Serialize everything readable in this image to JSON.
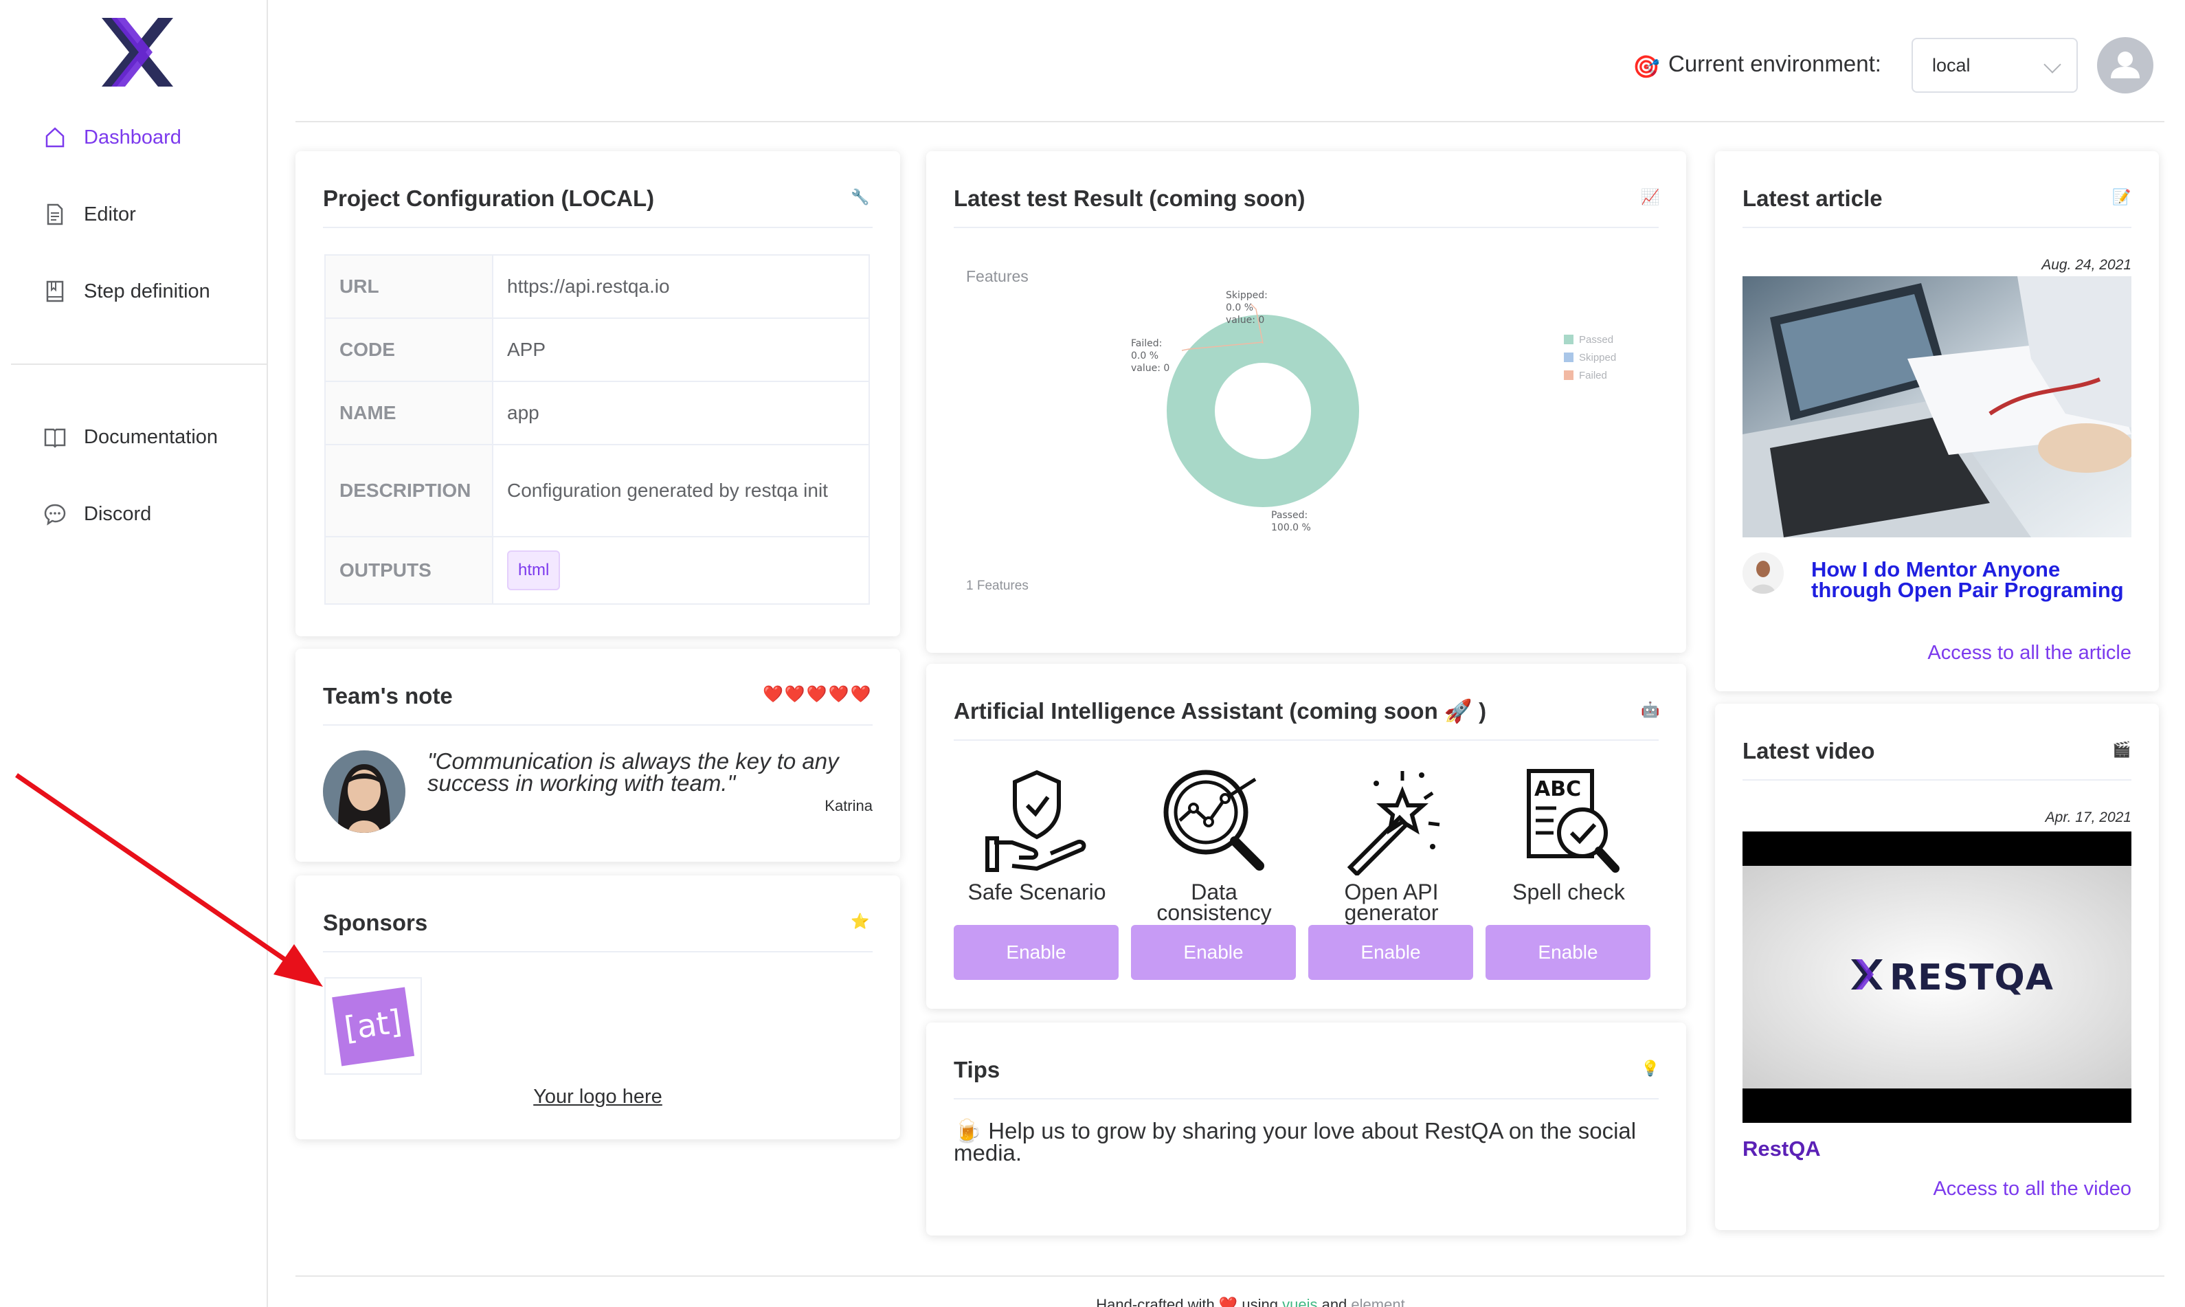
{
  "sidebar": {
    "items": [
      {
        "label": "Dashboard",
        "icon": "home-icon"
      },
      {
        "label": "Editor",
        "icon": "document-icon"
      },
      {
        "label": "Step definition",
        "icon": "notebook-icon"
      },
      {
        "label": "Documentation",
        "icon": "book-icon"
      },
      {
        "label": "Discord",
        "icon": "chat-icon"
      }
    ]
  },
  "header": {
    "env_icon": "🎯",
    "env_label": "Current environment:",
    "env_value": "local"
  },
  "project": {
    "title": "Project Configuration (LOCAL)",
    "icon": "🔧",
    "rows": [
      {
        "key": "URL",
        "value": "https://api.restqa.io"
      },
      {
        "key": "CODE",
        "value": "APP"
      },
      {
        "key": "NAME",
        "value": "app"
      },
      {
        "key": "DESCRIPTION",
        "value": "Configuration generated by restqa init"
      },
      {
        "key": "OUTPUTS",
        "value": "html"
      }
    ]
  },
  "team_note": {
    "title": "Team's note",
    "hearts": "❤️❤️❤️❤️❤️",
    "quote": "\"Communication is always the key to any success in working with team.\"",
    "author": "Katrina"
  },
  "sponsors": {
    "title": "Sponsors",
    "icon": "⭐",
    "logo_text": "[at]",
    "link": "Your logo here"
  },
  "test_result": {
    "title": "Latest test Result (coming soon)",
    "icon": "📈",
    "chart_label": "Features",
    "footer": "1 Features",
    "skipped_label": [
      "Skipped:",
      "0.0 %",
      "value: 0"
    ],
    "failed_label": [
      "Failed:",
      "0.0 %",
      "value: 0"
    ],
    "passed_label": [
      "Passed:",
      "100.0 %"
    ]
  },
  "chart_data": {
    "type": "pie",
    "title": "Features",
    "categories": [
      "Passed",
      "Skipped",
      "Failed"
    ],
    "values": [
      1,
      0,
      0
    ],
    "percent": [
      100.0,
      0.0,
      0.0
    ],
    "colors": [
      "#a8d8c8",
      "#a9c6e8",
      "#f2b9a3"
    ],
    "legend": "right"
  },
  "ai": {
    "title": "Artificial Intelligence Assistant (coming soon 🚀 )",
    "icon": "🤖",
    "items": [
      {
        "label": "Safe Scenario",
        "button": "Enable"
      },
      {
        "label": "Data consistency",
        "button": "Enable"
      },
      {
        "label": "Open API generator",
        "button": "Enable"
      },
      {
        "label": "Spell check",
        "button": "Enable"
      }
    ]
  },
  "tips": {
    "title": "Tips",
    "icon": "💡",
    "text_icon": "🍺",
    "text": "Help us to grow by sharing your love about RestQA on the social media."
  },
  "article": {
    "title": "Latest article",
    "icon": "📝",
    "date": "Aug. 24, 2021",
    "headline": "How I do Mentor Anyone through Open Pair Programing",
    "link": "Access to all the article"
  },
  "video": {
    "title": "Latest video",
    "icon": "🎬",
    "date": "Apr. 17, 2021",
    "thumb_text": "RESTQA",
    "name": "RestQA",
    "link": "Access to all the video"
  },
  "footer": {
    "prefix": "Hand-crafted with",
    "heart": "❤️",
    "using": "using",
    "vue": "vuejs",
    "and": "and",
    "el": "element"
  },
  "colors": {
    "accent": "#7c3aed",
    "button": "#c79bf5",
    "passed": "#a8d8c8",
    "arrow": "#e8101a"
  }
}
